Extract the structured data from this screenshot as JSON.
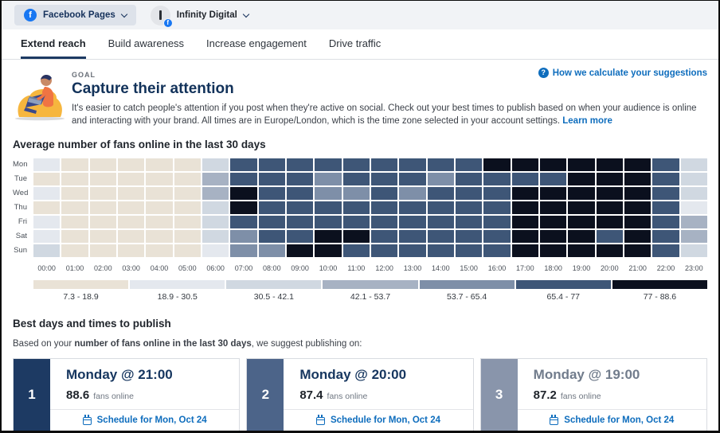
{
  "topbar": {
    "pages_label": "Facebook Pages",
    "account_name": "Infinity Digital"
  },
  "tabs": {
    "items": [
      "Extend reach",
      "Build awareness",
      "Increase engagement",
      "Drive traffic"
    ],
    "active": "Extend reach"
  },
  "goal": {
    "eyebrow": "GOAL",
    "title": "Capture their attention",
    "description": "It's easier to catch people's attention if you post when they're active on social. Check out your best times to publish based on when your audience is online and interacting with your brand. All times are in Europe/London, which is the time zone selected in your account settings.",
    "learn_more_label": "Learn more",
    "help_link_label": "How we calculate your suggestions"
  },
  "heatmap": {
    "title": "Average number of fans online in the last 30 days",
    "days": [
      "Mon",
      "Tue",
      "Wed",
      "Thu",
      "Fri",
      "Sat",
      "Sun"
    ],
    "hours": [
      "00:00",
      "01:00",
      "02:00",
      "03:00",
      "04:00",
      "05:00",
      "06:00",
      "07:00",
      "08:00",
      "09:00",
      "10:00",
      "11:00",
      "12:00",
      "13:00",
      "14:00",
      "15:00",
      "16:00",
      "17:00",
      "18:00",
      "19:00",
      "20:00",
      "21:00",
      "22:00",
      "23:00"
    ],
    "legend": [
      {
        "label": "7.3 - 18.9",
        "color": "#e9e2d6"
      },
      {
        "label": "18.9 - 30.5",
        "color": "#e4e8ee"
      },
      {
        "label": "30.5 - 42.1",
        "color": "#d0d8e1"
      },
      {
        "label": "42.1 - 53.7",
        "color": "#a7b2c3"
      },
      {
        "label": "53.7 - 65.4",
        "color": "#7e8fa8"
      },
      {
        "label": "65.4 - 77",
        "color": "#3e5677"
      },
      {
        "label": "77 - 88.6",
        "color": "#0b101e"
      }
    ],
    "grid_levels": [
      [
        1,
        0,
        0,
        0,
        0,
        0,
        2,
        5,
        5,
        5,
        5,
        5,
        5,
        5,
        5,
        5,
        6,
        6,
        6,
        6,
        6,
        6,
        5,
        2
      ],
      [
        0,
        0,
        0,
        0,
        0,
        0,
        3,
        5,
        5,
        5,
        4,
        5,
        5,
        5,
        4,
        5,
        5,
        5,
        5,
        6,
        6,
        6,
        5,
        2
      ],
      [
        1,
        0,
        0,
        0,
        0,
        0,
        3,
        6,
        5,
        5,
        4,
        4,
        5,
        4,
        5,
        5,
        5,
        6,
        6,
        6,
        6,
        6,
        5,
        2
      ],
      [
        0,
        0,
        0,
        0,
        0,
        0,
        2,
        6,
        5,
        5,
        5,
        5,
        5,
        5,
        5,
        5,
        5,
        6,
        6,
        6,
        6,
        6,
        5,
        1
      ],
      [
        1,
        0,
        0,
        0,
        0,
        0,
        2,
        5,
        5,
        5,
        5,
        5,
        5,
        5,
        5,
        5,
        5,
        6,
        6,
        6,
        6,
        6,
        5,
        3
      ],
      [
        1,
        0,
        0,
        0,
        0,
        0,
        2,
        4,
        5,
        5,
        6,
        6,
        5,
        5,
        5,
        5,
        5,
        6,
        6,
        6,
        5,
        6,
        5,
        3
      ],
      [
        2,
        0,
        0,
        0,
        0,
        0,
        1,
        4,
        4,
        6,
        6,
        5,
        5,
        5,
        5,
        5,
        5,
        6,
        6,
        6,
        6,
        6,
        5,
        2
      ]
    ]
  },
  "suggestions": {
    "title": "Best days and times to publish",
    "subtitle_prefix": "Based on your ",
    "subtitle_bold": "number of fans online in the last 30 days",
    "subtitle_suffix": ", we suggest publishing on:",
    "cards": [
      {
        "rank": "1",
        "time": "Monday @ 21:00",
        "value": "88.6",
        "unit": "fans online",
        "button_label": "Schedule for Mon, Oct 24",
        "rail_color": "#1d3a63",
        "title_color": "#16365f"
      },
      {
        "rank": "2",
        "time": "Monday @ 20:00",
        "value": "87.4",
        "unit": "fans online",
        "button_label": "Schedule for Mon, Oct 24",
        "rail_color": "#4c6489",
        "title_color": "#16365f"
      },
      {
        "rank": "3",
        "time": "Monday @ 19:00",
        "value": "87.2",
        "unit": "fans online",
        "button_label": "Schedule for Mon, Oct 24",
        "rail_color": "#8995ab",
        "title_color": "#717c8c"
      }
    ]
  }
}
